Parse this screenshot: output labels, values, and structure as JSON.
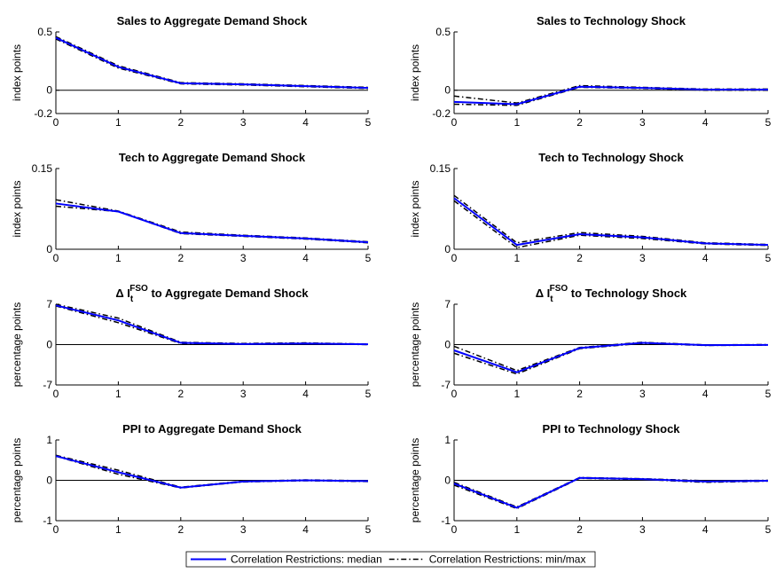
{
  "chart_data": [
    {
      "type": "line",
      "title": [
        {
          "text": "Sales to Aggregate Demand Shock"
        }
      ],
      "ylabel": "index points",
      "zero_line": true,
      "x": [
        0,
        1,
        2,
        3,
        4,
        5
      ],
      "xlim": [
        0,
        5
      ],
      "xticks": [
        0,
        1,
        2,
        3,
        4,
        5
      ],
      "ylim": [
        -0.2,
        0.5
      ],
      "yticks": [
        -0.2,
        0,
        0.5
      ],
      "series": [
        {
          "legend_entry": 1,
          "values": [
            0.44,
            0.19,
            0.055,
            0.045,
            0.03,
            0.015
          ]
        },
        {
          "legend_entry": 1,
          "values": [
            0.46,
            0.21,
            0.065,
            0.055,
            0.04,
            0.025
          ]
        },
        {
          "legend_entry": 0,
          "values": [
            0.45,
            0.2,
            0.06,
            0.05,
            0.035,
            0.02
          ]
        }
      ]
    },
    {
      "type": "line",
      "title": [
        {
          "text": "Sales to Technology Shock"
        }
      ],
      "ylabel": "index points",
      "zero_line": true,
      "x": [
        0,
        1,
        2,
        3,
        4,
        5
      ],
      "xlim": [
        0,
        5
      ],
      "xticks": [
        0,
        1,
        2,
        3,
        4,
        5
      ],
      "ylim": [
        -0.2,
        0.5
      ],
      "yticks": [
        -0.2,
        0,
        0.5
      ],
      "series": [
        {
          "legend_entry": 1,
          "values": [
            -0.12,
            -0.13,
            0.025,
            0.015,
            0.0,
            0.0
          ]
        },
        {
          "legend_entry": 1,
          "values": [
            -0.05,
            -0.11,
            0.04,
            0.025,
            0.01,
            0.01
          ]
        },
        {
          "legend_entry": 0,
          "values": [
            -0.1,
            -0.12,
            0.03,
            0.02,
            0.005,
            0.005
          ]
        }
      ]
    },
    {
      "type": "line",
      "title": [
        {
          "text": "Tech to Aggregate Demand Shock"
        }
      ],
      "ylabel": "index points",
      "zero_line": false,
      "x": [
        0,
        1,
        2,
        3,
        4,
        5
      ],
      "xlim": [
        0,
        5
      ],
      "xticks": [
        0,
        1,
        2,
        3,
        4,
        5
      ],
      "ylim": [
        0,
        0.15
      ],
      "yticks": [
        0,
        0.15
      ],
      "series": [
        {
          "legend_entry": 1,
          "values": [
            0.08,
            0.07,
            0.029,
            0.024,
            0.019,
            0.012
          ]
        },
        {
          "legend_entry": 1,
          "values": [
            0.092,
            0.071,
            0.032,
            0.026,
            0.021,
            0.014
          ]
        },
        {
          "legend_entry": 0,
          "values": [
            0.085,
            0.07,
            0.03,
            0.025,
            0.02,
            0.013
          ]
        }
      ]
    },
    {
      "type": "line",
      "title": [
        {
          "text": "Tech to Technology Shock"
        }
      ],
      "ylabel": "index points",
      "zero_line": false,
      "x": [
        0,
        1,
        2,
        3,
        4,
        5
      ],
      "xlim": [
        0,
        5
      ],
      "xticks": [
        0,
        1,
        2,
        3,
        4,
        5
      ],
      "ylim": [
        0,
        0.15
      ],
      "yticks": [
        0,
        0.15
      ],
      "series": [
        {
          "legend_entry": 1,
          "values": [
            0.09,
            0.003,
            0.026,
            0.02,
            0.01,
            0.007
          ]
        },
        {
          "legend_entry": 1,
          "values": [
            0.1,
            0.012,
            0.031,
            0.024,
            0.012,
            0.009
          ]
        },
        {
          "legend_entry": 0,
          "values": [
            0.095,
            0.008,
            0.028,
            0.022,
            0.011,
            0.008
          ]
        }
      ]
    },
    {
      "type": "line",
      "title": [
        {
          "text": "Δ I"
        },
        {
          "text": "t",
          "shift": "sub"
        },
        {
          "text": "FSO",
          "shift": "super"
        },
        {
          "text": " to Aggregate Demand Shock"
        }
      ],
      "ylabel": "percentage points",
      "zero_line": true,
      "x": [
        0,
        1,
        2,
        3,
        4,
        5
      ],
      "xlim": [
        0,
        5
      ],
      "xticks": [
        0,
        1,
        2,
        3,
        4,
        5
      ],
      "ylim": [
        -7,
        7
      ],
      "yticks": [
        -7,
        0,
        7
      ],
      "series": [
        {
          "legend_entry": 1,
          "values": [
            6.7,
            3.8,
            0.2,
            0.05,
            0.15,
            0.0
          ]
        },
        {
          "legend_entry": 1,
          "values": [
            7.0,
            4.6,
            0.4,
            0.2,
            0.3,
            0.1
          ]
        },
        {
          "legend_entry": 0,
          "values": [
            6.8,
            4.2,
            0.3,
            0.1,
            0.2,
            0.05
          ]
        }
      ]
    },
    {
      "type": "line",
      "title": [
        {
          "text": "Δ I"
        },
        {
          "text": "t",
          "shift": "sub"
        },
        {
          "text": "FSO",
          "shift": "super"
        },
        {
          "text": " to Technology Shock"
        }
      ],
      "ylabel": "percentage points",
      "zero_line": true,
      "x": [
        0,
        1,
        2,
        3,
        4,
        5
      ],
      "xlim": [
        0,
        5
      ],
      "xticks": [
        0,
        1,
        2,
        3,
        4,
        5
      ],
      "ylim": [
        -7,
        7
      ],
      "yticks": [
        -7,
        0,
        7
      ],
      "series": [
        {
          "legend_entry": 1,
          "values": [
            -1.5,
            -5.1,
            -0.7,
            0.2,
            -0.15,
            -0.1
          ]
        },
        {
          "legend_entry": 1,
          "values": [
            -0.3,
            -4.5,
            -0.5,
            0.4,
            -0.05,
            0.0
          ]
        },
        {
          "legend_entry": 0,
          "values": [
            -1.0,
            -4.8,
            -0.6,
            0.3,
            -0.1,
            -0.05
          ]
        }
      ]
    },
    {
      "type": "line",
      "title": [
        {
          "text": "PPI to Aggregate Demand Shock"
        }
      ],
      "ylabel": "percentage points",
      "zero_line": true,
      "x": [
        0,
        1,
        2,
        3,
        4,
        5
      ],
      "xlim": [
        0,
        5
      ],
      "xticks": [
        0,
        1,
        2,
        3,
        4,
        5
      ],
      "ylim": [
        -1,
        1
      ],
      "yticks": [
        -1,
        0,
        1
      ],
      "series": [
        {
          "legend_entry": 1,
          "values": [
            0.6,
            0.15,
            -0.19,
            -0.04,
            -0.01,
            -0.03
          ]
        },
        {
          "legend_entry": 1,
          "values": [
            0.62,
            0.25,
            -0.17,
            -0.02,
            0.01,
            -0.01
          ]
        },
        {
          "legend_entry": 0,
          "values": [
            0.6,
            0.2,
            -0.18,
            -0.03,
            0.0,
            -0.02
          ]
        }
      ]
    },
    {
      "type": "line",
      "title": [
        {
          "text": "PPI to Technology Shock"
        }
      ],
      "ylabel": "percentage points",
      "zero_line": true,
      "x": [
        0,
        1,
        2,
        3,
        4,
        5
      ],
      "xlim": [
        0,
        5
      ],
      "xticks": [
        0,
        1,
        2,
        3,
        4,
        5
      ],
      "ylim": [
        -1,
        1
      ],
      "yticks": [
        -1,
        0,
        1
      ],
      "series": [
        {
          "legend_entry": 1,
          "values": [
            -0.12,
            -0.7,
            0.05,
            0.02,
            -0.05,
            -0.02
          ]
        },
        {
          "legend_entry": 1,
          "values": [
            -0.05,
            -0.66,
            0.07,
            0.04,
            -0.01,
            0.0
          ]
        },
        {
          "legend_entry": 0,
          "values": [
            -0.08,
            -0.68,
            0.06,
            0.03,
            -0.03,
            -0.01
          ]
        }
      ]
    }
  ],
  "legend": {
    "entries": [
      {
        "label": "Correlation Restrictions: median",
        "color": "#0000ff",
        "width": 2,
        "dash": "none"
      },
      {
        "label": "Correlation Restrictions: min/max",
        "color": "#000000",
        "width": 1.5,
        "dash": "6 3 1.5 3"
      }
    ]
  }
}
